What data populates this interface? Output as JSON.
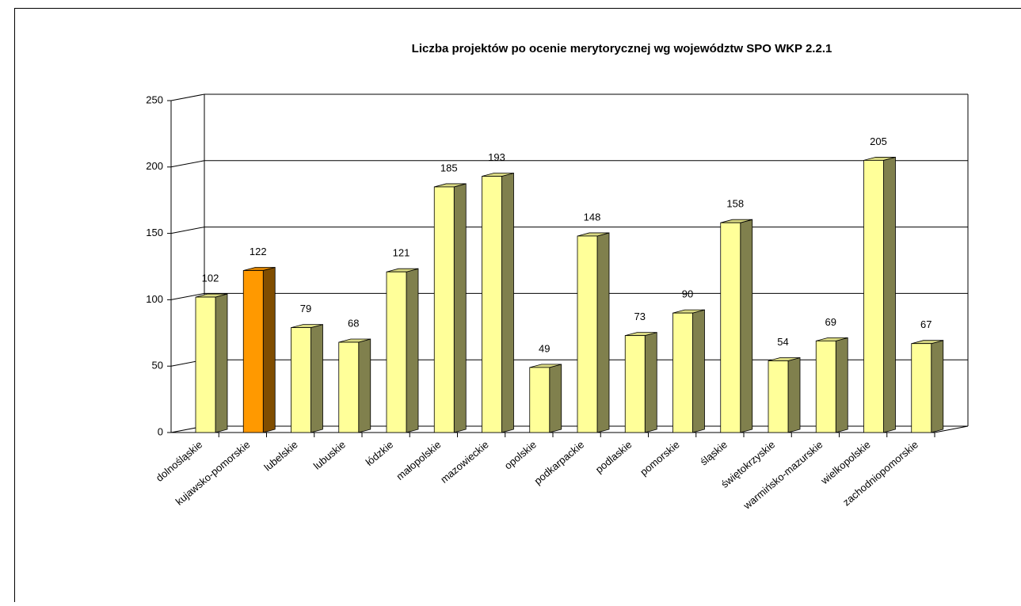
{
  "chart_data": {
    "type": "bar3d",
    "title": "Liczba projektów po ocenie merytorycznej wg województw SPO WKP 2.2.1",
    "categories": [
      "dolnośląskie",
      "kujawsko-pomorskie",
      "lubelskie",
      "lubuskie",
      "łódzkie",
      "małopolskie",
      "mazowieckie",
      "opolskie",
      "podkarpackie",
      "podlaskie",
      "pomorskie",
      "śląskie",
      "świętokrzyskie",
      "warmińsko-mazurskie",
      "wielkopolskie",
      "zachodniopomorskie"
    ],
    "values": [
      102,
      122,
      79,
      68,
      121,
      185,
      193,
      49,
      148,
      73,
      90,
      158,
      54,
      69,
      205,
      67
    ],
    "colors": [
      "#ffff99",
      "#ff9900",
      "#ffff99",
      "#ffff99",
      "#ffff99",
      "#ffff99",
      "#ffff99",
      "#ffff99",
      "#ffff99",
      "#ffff99",
      "#ffff99",
      "#ffff99",
      "#ffff99",
      "#ffff99",
      "#ffff99",
      "#ffff99"
    ],
    "ylim": [
      0,
      250
    ],
    "yticks": [
      0,
      50,
      100,
      150,
      200,
      250
    ],
    "grid": true
  }
}
